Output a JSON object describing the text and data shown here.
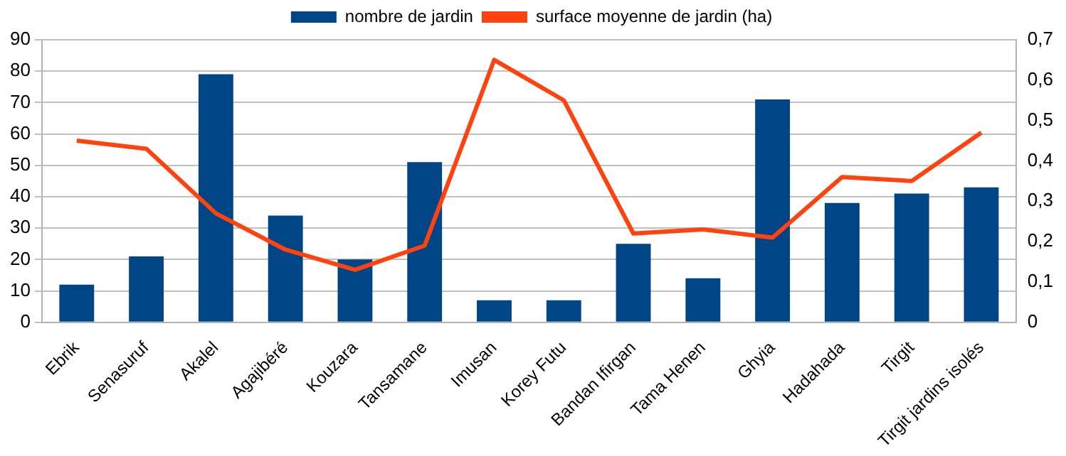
{
  "chart_data": {
    "type": "bar",
    "categories": [
      "Ebrik",
      "Senasuruf",
      "Akalel",
      "Agajibéré",
      "Kouzara",
      "Tansamane",
      "Imusan",
      "Korey Futu",
      "Bandan Ifirgan",
      "Tama Henen",
      "Ghyia",
      "Hadahada",
      "Tirgit",
      "Tirgit jardins isolés"
    ],
    "series": [
      {
        "name": "nombre de jardin",
        "color": "#004586",
        "values": [
          12,
          21,
          79,
          34,
          20,
          51,
          7,
          7,
          25,
          14,
          71,
          38,
          41,
          43
        ]
      },
      {
        "name": "surface moyenne de jardin (ha)",
        "color": "#ff420e",
        "type": "line",
        "axis": "y2",
        "values": [
          0.45,
          0.43,
          0.27,
          0.18,
          0.13,
          0.19,
          0.65,
          0.55,
          0.22,
          0.23,
          0.21,
          0.36,
          0.35,
          0.47
        ]
      }
    ],
    "ylim": [
      0,
      90
    ],
    "yticks": [
      0,
      10,
      20,
      30,
      40,
      50,
      60,
      70,
      80,
      90
    ],
    "y2lim": [
      0,
      0.7
    ],
    "y2ticks": [
      0,
      {
        "value": 0.1,
        "label": "0,1"
      },
      {
        "value": 0.2,
        "label": "0,2"
      },
      {
        "value": 0.3,
        "label": "0,3"
      },
      {
        "value": 0.4,
        "label": "0,4"
      },
      {
        "value": 0.5,
        "label": "0,5"
      },
      {
        "value": 0.6,
        "label": "0,6"
      },
      {
        "value": 0.7,
        "label": "0,7"
      }
    ],
    "grid": "y",
    "legend": "top",
    "marker": "none"
  }
}
